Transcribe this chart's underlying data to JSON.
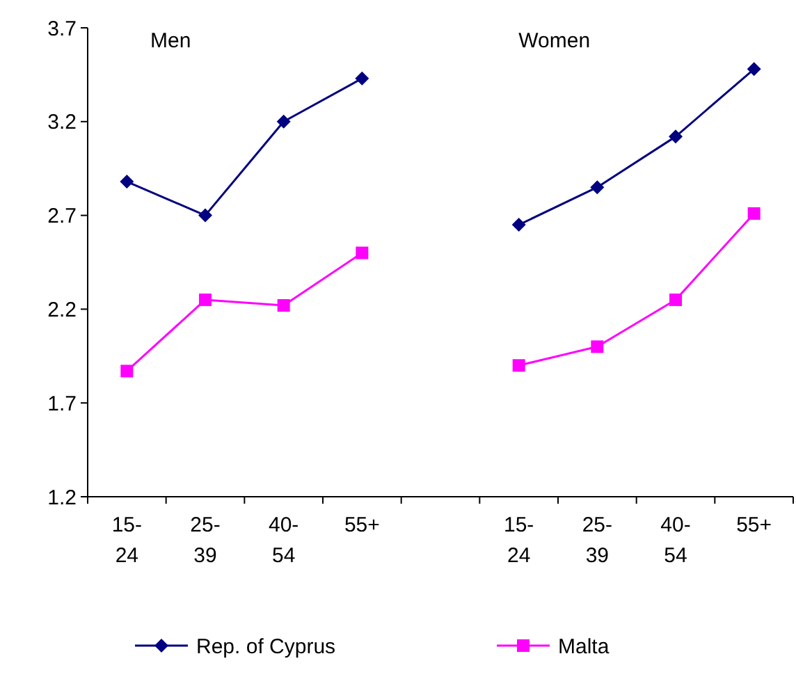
{
  "chart_data": {
    "type": "line",
    "categories": [
      "15-24",
      "25-39",
      "40-54",
      "55+",
      null,
      "15-24",
      "25-39",
      "40-54",
      "55+"
    ],
    "series": [
      {
        "name": "Rep. of Cyprus",
        "color": "#000080",
        "marker": "diamond",
        "values": [
          2.88,
          2.7,
          3.2,
          3.43,
          null,
          2.65,
          2.85,
          3.12,
          3.48
        ]
      },
      {
        "name": "Malta",
        "color": "#ff00ff",
        "marker": "square",
        "values": [
          1.87,
          2.25,
          2.22,
          2.5,
          null,
          1.9,
          2.0,
          2.25,
          2.71
        ]
      }
    ],
    "ylim": [
      1.2,
      3.7
    ],
    "yticks": [
      1.2,
      1.7,
      2.2,
      2.7,
      3.2,
      3.7
    ],
    "grid": false,
    "legend": "bottom",
    "annotations": [
      "Men",
      "Women"
    ]
  }
}
